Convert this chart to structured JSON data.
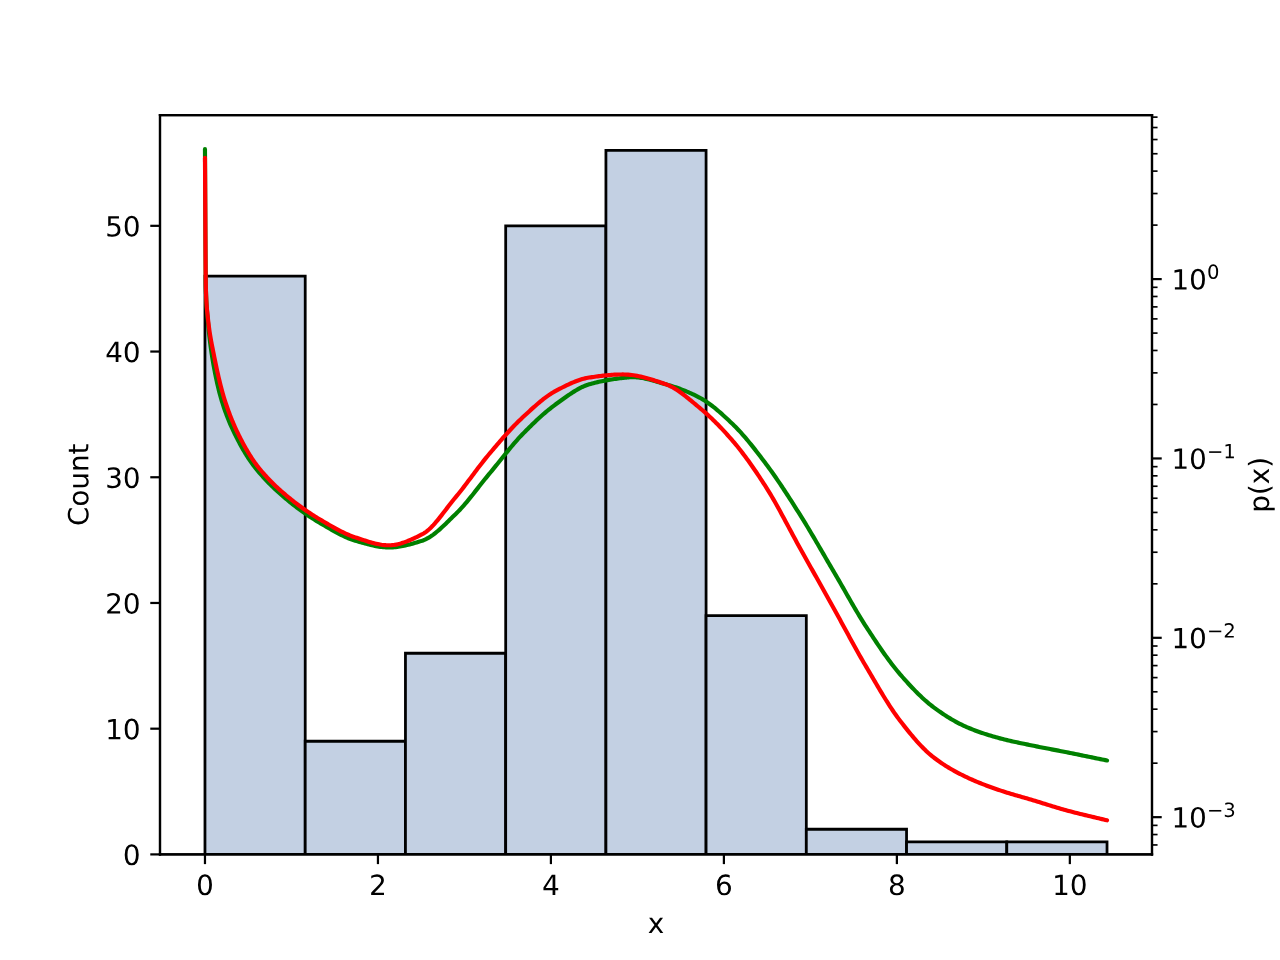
{
  "chart_data": {
    "type": "histogram",
    "xlabel": "x",
    "ylabel": "Count",
    "y2label": "p(x)",
    "log": "y2",
    "bins": [
      0,
      1.159,
      2.318,
      3.477,
      4.636,
      5.794,
      6.953,
      8.112,
      9.271,
      10.43
    ],
    "xlim": [
      -0.52,
      10.95
    ],
    "xticks": [
      0,
      2,
      4,
      6,
      8,
      10
    ],
    "ylim": [
      0,
      58.8
    ],
    "yticks": [
      0,
      10,
      20,
      30,
      40,
      50
    ],
    "y2lim": [
      0.00062,
      8.2
    ],
    "y2ticks": [
      {
        "value": 0.001,
        "label": "10$^{−3}$"
      },
      {
        "value": 0.01,
        "label": "10$^{−2}$"
      },
      {
        "value": 0.1,
        "label": "10$^{−1}$"
      },
      {
        "value": 1,
        "label": "10$^{0}$"
      }
    ],
    "series": [
      {
        "color": "#c3d0e3",
        "values": [
          46,
          9,
          16,
          50,
          56,
          19,
          2,
          1,
          1
        ]
      },
      {
        "type": "line",
        "axis": "y2",
        "color": "#008000",
        "x": [
          0,
          0.01,
          0.03,
          0.079,
          0.195,
          0.387,
          0.579,
          0.966,
          1.353,
          1.738,
          2.125,
          2.512,
          2.897,
          3.284,
          3.671,
          4.056,
          4.443,
          4.83,
          4.946,
          5.33,
          5.717,
          6.104,
          6.489,
          6.876,
          7.263,
          7.648,
          8.035,
          8.422,
          8.807,
          9.194,
          9.581,
          9.965,
          10.43
        ],
        "values": [
          5.3,
          0.895,
          0.614,
          0.38,
          0.209,
          0.125,
          0.0891,
          0.058,
          0.043,
          0.0348,
          0.0319,
          0.0348,
          0.0489,
          0.0817,
          0.1364,
          0.2004,
          0.259,
          0.281,
          0.284,
          0.259,
          0.2186,
          0.155,
          0.0929,
          0.0489,
          0.0237,
          0.01146,
          0.00628,
          0.00411,
          0.00318,
          0.00275,
          0.0025,
          0.0023,
          0.00207
        ]
      },
      {
        "type": "line",
        "axis": "y2",
        "color": "#ff0000",
        "x": [
          0,
          0.01,
          0.03,
          0.102,
          0.232,
          0.426,
          0.619,
          0.966,
          1.353,
          1.738,
          2.125,
          2.512,
          2.897,
          3.284,
          3.671,
          4.056,
          4.443,
          4.83,
          5.33,
          5.717,
          6.104,
          6.489,
          6.876,
          7.263,
          7.648,
          8.035,
          8.422,
          8.807,
          9.194,
          9.581,
          9.965,
          10.43
        ],
        "values": [
          4.74,
          0.895,
          0.63,
          0.38,
          0.209,
          0.125,
          0.0891,
          0.0607,
          0.045,
          0.0363,
          0.0328,
          0.0378,
          0.0607,
          0.1055,
          0.169,
          0.238,
          0.2825,
          0.294,
          0.259,
          0.192,
          0.125,
          0.069,
          0.0319,
          0.0148,
          0.00686,
          0.00346,
          0.00216,
          0.00167,
          0.00141,
          0.00124,
          0.00109,
          0.00096
        ]
      }
    ]
  }
}
